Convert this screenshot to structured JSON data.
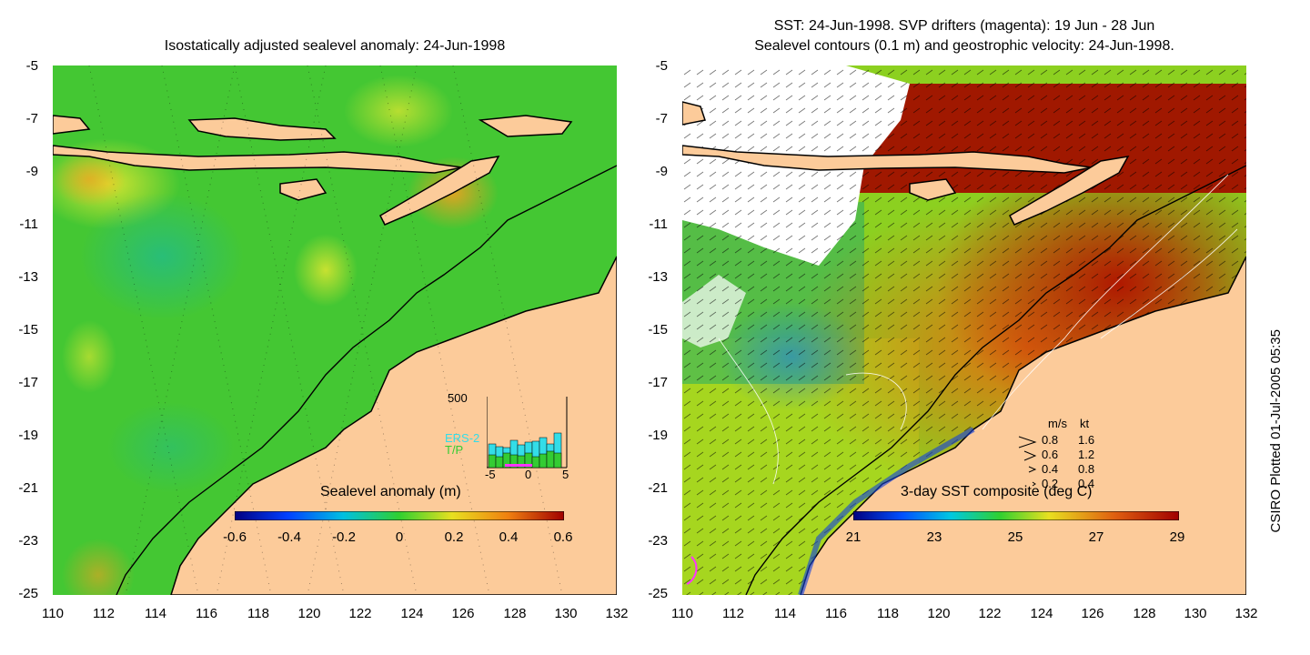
{
  "left_panel": {
    "title": "Isostatically adjusted sealevel anomaly: 24-Jun-1998",
    "colorbar_label": "Sealevel anomaly (m)",
    "colorbar_ticks": [
      "-0.6",
      "-0.4",
      "-0.2",
      "0",
      "0.2",
      "0.4",
      "0.6"
    ],
    "histogram": {
      "ymax_label": "500",
      "series_labels": [
        "ERS-2",
        "T/P"
      ],
      "x_ticks": [
        "-5",
        "0",
        "5"
      ],
      "colors": {
        "ERS-2": "#33dde8",
        "T/P": "#33cc33"
      }
    }
  },
  "right_panel": {
    "title_line1": "SST: 24-Jun-1998. SVP drifters (magenta): 19 Jun - 28 Jun",
    "title_line2": "Sealevel contours (0.1 m) and geostrophic velocity: 24-Jun-1998.",
    "colorbar_label": "3-day SST composite (deg C)",
    "colorbar_ticks": [
      "21",
      "23",
      "25",
      "27",
      "29"
    ],
    "velocity_legend": {
      "header_ms": "m/s",
      "header_kt": "kt",
      "rows": [
        {
          "ms": "0.8",
          "kt": "1.6"
        },
        {
          "ms": "0.6",
          "kt": "1.2"
        },
        {
          "ms": "0.4",
          "kt": "0.8"
        },
        {
          "ms": "0.2",
          "kt": "0.4"
        }
      ]
    }
  },
  "axes": {
    "y_ticks": [
      "-5",
      "-7",
      "-9",
      "-11",
      "-13",
      "-15",
      "-17",
      "-19",
      "-21",
      "-23",
      "-25"
    ],
    "x_ticks": [
      "110",
      "112",
      "114",
      "116",
      "118",
      "120",
      "122",
      "124",
      "126",
      "128",
      "130",
      "132"
    ]
  },
  "credit": "CSIRO Plotted 01-Jul-2005 05:35",
  "colors": {
    "land": "#fccb9a",
    "sea_mid": "#33cc33",
    "sst_warm": "#c02000"
  }
}
